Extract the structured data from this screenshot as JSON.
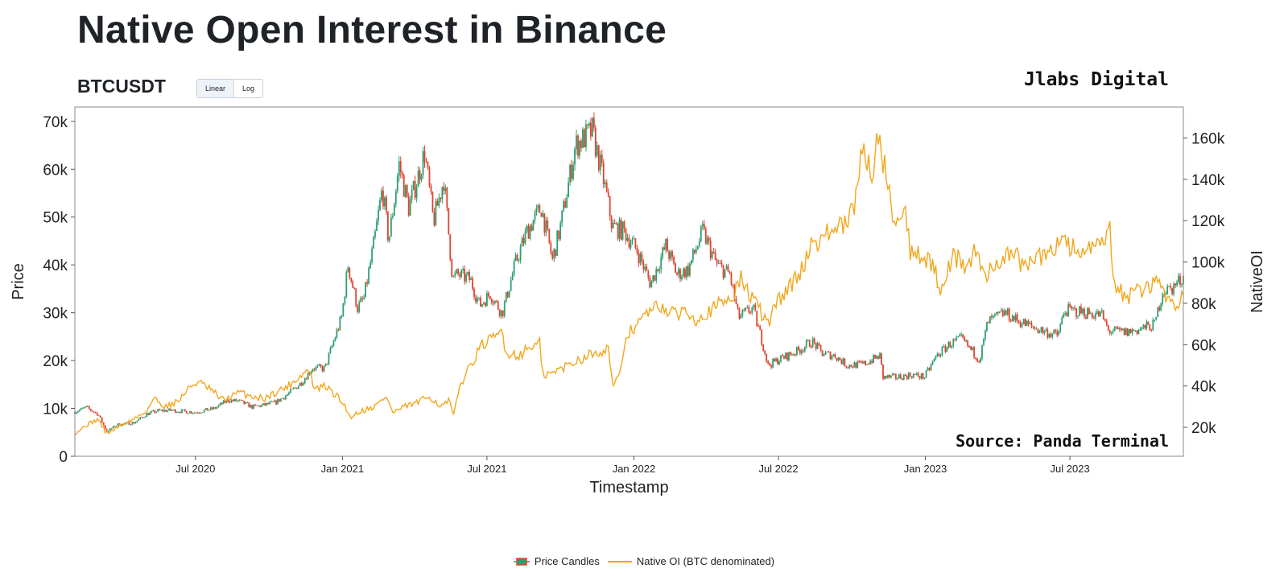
{
  "page": {
    "title": "Native Open Interest in Binance",
    "symbol": "BTCUSDT",
    "scale_buttons": [
      "Linear",
      "Log"
    ],
    "brand": "Jlabs Digital",
    "source": "Source: Panda Terminal"
  },
  "colors": {
    "up_candle": "#2e9e6e",
    "down_candle": "#e0432f",
    "native_oi": "#f2a61c",
    "axis": "#555555",
    "frame": "#888888"
  },
  "chart_data": {
    "type": "line",
    "title": "Native Open Interest in Binance",
    "xlabel": "Timestamp",
    "ylabel": "Price",
    "y2label": "NativeOI",
    "xlim": [
      "2020-02-01",
      "2023-11-20"
    ],
    "ylim": [
      0,
      73000
    ],
    "y2lim": [
      6000,
      175000
    ],
    "x_ticks": [
      {
        "date": "2020-07-01",
        "label": "Jul 2020"
      },
      {
        "date": "2021-01-01",
        "label": "Jan 2021"
      },
      {
        "date": "2021-07-01",
        "label": "Jul 2021"
      },
      {
        "date": "2022-01-01",
        "label": "Jan 2022"
      },
      {
        "date": "2022-07-01",
        "label": "Jul 2022"
      },
      {
        "date": "2023-01-01",
        "label": "Jan 2023"
      },
      {
        "date": "2023-07-01",
        "label": "Jul 2023"
      }
    ],
    "y_ticks": [
      {
        "value": 0,
        "label": "0"
      },
      {
        "value": 10000,
        "label": "10k"
      },
      {
        "value": 20000,
        "label": "20k"
      },
      {
        "value": 30000,
        "label": "30k"
      },
      {
        "value": 40000,
        "label": "40k"
      },
      {
        "value": 50000,
        "label": "50k"
      },
      {
        "value": 60000,
        "label": "60k"
      },
      {
        "value": 70000,
        "label": "70k"
      }
    ],
    "y2_ticks": [
      {
        "value": 20000,
        "label": "20k"
      },
      {
        "value": 40000,
        "label": "40k"
      },
      {
        "value": 60000,
        "label": "60k"
      },
      {
        "value": 80000,
        "label": "80k"
      },
      {
        "value": 100000,
        "label": "100k"
      },
      {
        "value": 120000,
        "label": "120k"
      },
      {
        "value": 140000,
        "label": "140k"
      },
      {
        "value": 160000,
        "label": "160k"
      }
    ],
    "legend_position": "bottom-center",
    "grid": false,
    "series": [
      {
        "name": "Price Candles",
        "type": "candlestick",
        "axis": "left",
        "points": [
          [
            "2020-02-01",
            9300
          ],
          [
            "2020-02-15",
            10200
          ],
          [
            "2020-03-01",
            8800
          ],
          [
            "2020-03-12",
            5200
          ],
          [
            "2020-03-25",
            6600
          ],
          [
            "2020-04-15",
            7000
          ],
          [
            "2020-05-01",
            8800
          ],
          [
            "2020-05-15",
            9500
          ],
          [
            "2020-06-01",
            9600
          ],
          [
            "2020-06-15",
            9400
          ],
          [
            "2020-07-01",
            9200
          ],
          [
            "2020-07-25",
            10000
          ],
          [
            "2020-08-10",
            11700
          ],
          [
            "2020-08-25",
            11500
          ],
          [
            "2020-09-10",
            10300
          ],
          [
            "2020-09-25",
            10700
          ],
          [
            "2020-10-10",
            11300
          ],
          [
            "2020-10-25",
            13000
          ],
          [
            "2020-11-10",
            15300
          ],
          [
            "2020-11-25",
            18500
          ],
          [
            "2020-12-10",
            18300
          ],
          [
            "2020-12-20",
            23500
          ],
          [
            "2020-12-31",
            29000
          ],
          [
            "2021-01-08",
            40000
          ],
          [
            "2021-01-20",
            31000
          ],
          [
            "2021-01-28",
            33000
          ],
          [
            "2021-02-10",
            45000
          ],
          [
            "2021-02-20",
            56000
          ],
          [
            "2021-02-28",
            45000
          ],
          [
            "2021-03-13",
            61000
          ],
          [
            "2021-03-25",
            52000
          ],
          [
            "2021-04-05",
            58000
          ],
          [
            "2021-04-14",
            63500
          ],
          [
            "2021-04-25",
            49000
          ],
          [
            "2021-05-08",
            58000
          ],
          [
            "2021-05-19",
            37000
          ],
          [
            "2021-05-25",
            38000
          ],
          [
            "2021-06-10",
            37000
          ],
          [
            "2021-06-22",
            31500
          ],
          [
            "2021-07-05",
            34000
          ],
          [
            "2021-07-20",
            29800
          ],
          [
            "2021-08-05",
            40000
          ],
          [
            "2021-08-20",
            47000
          ],
          [
            "2021-09-07",
            52000
          ],
          [
            "2021-09-21",
            41000
          ],
          [
            "2021-10-01",
            48000
          ],
          [
            "2021-10-20",
            65000
          ],
          [
            "2021-11-10",
            68000
          ],
          [
            "2021-11-25",
            57000
          ],
          [
            "2021-12-05",
            48000
          ],
          [
            "2021-12-20",
            47000
          ],
          [
            "2022-01-05",
            43000
          ],
          [
            "2022-01-22",
            36000
          ],
          [
            "2022-02-10",
            44000
          ],
          [
            "2022-02-24",
            38000
          ],
          [
            "2022-03-10",
            39000
          ],
          [
            "2022-03-28",
            47000
          ],
          [
            "2022-04-15",
            40000
          ],
          [
            "2022-05-01",
            38000
          ],
          [
            "2022-05-12",
            29000
          ],
          [
            "2022-05-30",
            31000
          ],
          [
            "2022-06-13",
            22500
          ],
          [
            "2022-06-18",
            19000
          ],
          [
            "2022-07-05",
            20500
          ],
          [
            "2022-07-25",
            22000
          ],
          [
            "2022-08-12",
            24000
          ],
          [
            "2022-08-25",
            21500
          ],
          [
            "2022-09-10",
            21000
          ],
          [
            "2022-09-25",
            19000
          ],
          [
            "2022-10-15",
            19200
          ],
          [
            "2022-11-05",
            21000
          ],
          [
            "2022-11-09",
            16500
          ],
          [
            "2022-11-25",
            16500
          ],
          [
            "2022-12-15",
            17000
          ],
          [
            "2022-12-31",
            16600
          ],
          [
            "2023-01-15",
            21000
          ],
          [
            "2023-02-01",
            23500
          ],
          [
            "2023-02-15",
            24500
          ],
          [
            "2023-03-10",
            20200
          ],
          [
            "2023-03-20",
            28000
          ],
          [
            "2023-04-10",
            30000
          ],
          [
            "2023-04-25",
            28500
          ],
          [
            "2023-05-15",
            27000
          ],
          [
            "2023-06-15",
            25200
          ],
          [
            "2023-06-25",
            30500
          ],
          [
            "2023-07-15",
            30200
          ],
          [
            "2023-08-10",
            29500
          ],
          [
            "2023-08-18",
            26200
          ],
          [
            "2023-09-10",
            25900
          ],
          [
            "2023-09-25",
            26500
          ],
          [
            "2023-10-15",
            27500
          ],
          [
            "2023-10-25",
            34500
          ],
          [
            "2023-11-05",
            35000
          ],
          [
            "2023-11-20",
            37500
          ]
        ]
      },
      {
        "name": "Native OI (BTC denominated)",
        "type": "line",
        "axis": "right",
        "points": [
          [
            "2020-02-01",
            17000
          ],
          [
            "2020-02-15",
            21000
          ],
          [
            "2020-03-01",
            24000
          ],
          [
            "2020-03-12",
            17000
          ],
          [
            "2020-03-25",
            20000
          ],
          [
            "2020-04-15",
            24000
          ],
          [
            "2020-05-01",
            28000
          ],
          [
            "2020-05-10",
            34000
          ],
          [
            "2020-05-25",
            30000
          ],
          [
            "2020-06-10",
            33000
          ],
          [
            "2020-06-25",
            40000
          ],
          [
            "2020-07-05",
            42000
          ],
          [
            "2020-07-20",
            38000
          ],
          [
            "2020-08-05",
            33000
          ],
          [
            "2020-08-25",
            37000
          ],
          [
            "2020-09-10",
            35000
          ],
          [
            "2020-09-25",
            34000
          ],
          [
            "2020-10-10",
            37000
          ],
          [
            "2020-10-25",
            40000
          ],
          [
            "2020-11-10",
            45000
          ],
          [
            "2020-11-20",
            48000
          ],
          [
            "2020-11-28",
            38000
          ],
          [
            "2020-12-10",
            40000
          ],
          [
            "2020-12-25",
            35000
          ],
          [
            "2021-01-05",
            30000
          ],
          [
            "2021-01-10",
            25000
          ],
          [
            "2021-01-25",
            28000
          ],
          [
            "2021-02-10",
            30000
          ],
          [
            "2021-02-25",
            35000
          ],
          [
            "2021-03-05",
            27000
          ],
          [
            "2021-03-20",
            30000
          ],
          [
            "2021-04-05",
            32000
          ],
          [
            "2021-04-20",
            35000
          ],
          [
            "2021-05-05",
            30000
          ],
          [
            "2021-05-15",
            33000
          ],
          [
            "2021-05-20",
            25000
          ],
          [
            "2021-05-28",
            40000
          ],
          [
            "2021-06-10",
            50000
          ],
          [
            "2021-06-25",
            60000
          ],
          [
            "2021-07-10",
            63000
          ],
          [
            "2021-07-20",
            67000
          ],
          [
            "2021-07-25",
            56000
          ],
          [
            "2021-08-10",
            55000
          ],
          [
            "2021-08-25",
            59000
          ],
          [
            "2021-09-05",
            61000
          ],
          [
            "2021-09-08",
            45000
          ],
          [
            "2021-09-20",
            46000
          ],
          [
            "2021-10-05",
            49000
          ],
          [
            "2021-10-20",
            52000
          ],
          [
            "2021-11-05",
            55000
          ],
          [
            "2021-11-20",
            57000
          ],
          [
            "2021-12-01",
            58000
          ],
          [
            "2021-12-05",
            40000
          ],
          [
            "2021-12-15",
            45000
          ],
          [
            "2021-12-22",
            64000
          ],
          [
            "2022-01-05",
            70000
          ],
          [
            "2022-01-20",
            76000
          ],
          [
            "2022-02-05",
            79000
          ],
          [
            "2022-02-20",
            74000
          ],
          [
            "2022-03-05",
            77000
          ],
          [
            "2022-03-20",
            73000
          ],
          [
            "2022-04-05",
            76000
          ],
          [
            "2022-04-20",
            80000
          ],
          [
            "2022-05-05",
            84000
          ],
          [
            "2022-05-15",
            92000
          ],
          [
            "2022-05-25",
            85000
          ],
          [
            "2022-06-10",
            75000
          ],
          [
            "2022-06-18",
            70000
          ],
          [
            "2022-06-28",
            80000
          ],
          [
            "2022-07-15",
            88000
          ],
          [
            "2022-07-30",
            96000
          ],
          [
            "2022-08-10",
            108000
          ],
          [
            "2022-08-25",
            112000
          ],
          [
            "2022-09-10",
            116000
          ],
          [
            "2022-09-25",
            118000
          ],
          [
            "2022-10-05",
            128000
          ],
          [
            "2022-10-15",
            160000
          ],
          [
            "2022-10-25",
            140000
          ],
          [
            "2022-11-05",
            165000
          ],
          [
            "2022-11-09",
            150000
          ],
          [
            "2022-11-15",
            135000
          ],
          [
            "2022-11-25",
            120000
          ],
          [
            "2022-12-08",
            125000
          ],
          [
            "2022-12-12",
            106000
          ],
          [
            "2022-12-25",
            104000
          ],
          [
            "2023-01-10",
            98000
          ],
          [
            "2023-01-20",
            88000
          ],
          [
            "2023-02-05",
            103000
          ],
          [
            "2023-02-20",
            98000
          ],
          [
            "2023-03-05",
            105000
          ],
          [
            "2023-03-15",
            93000
          ],
          [
            "2023-04-01",
            100000
          ],
          [
            "2023-04-20",
            105000
          ],
          [
            "2023-05-05",
            97000
          ],
          [
            "2023-05-20",
            102000
          ],
          [
            "2023-06-05",
            103000
          ],
          [
            "2023-06-20",
            113000
          ],
          [
            "2023-07-05",
            106000
          ],
          [
            "2023-07-25",
            105000
          ],
          [
            "2023-08-10",
            108000
          ],
          [
            "2023-08-20",
            115000
          ],
          [
            "2023-08-25",
            88000
          ],
          [
            "2023-09-10",
            83000
          ],
          [
            "2023-09-25",
            86000
          ],
          [
            "2023-10-10",
            88000
          ],
          [
            "2023-10-20",
            94000
          ],
          [
            "2023-10-28",
            82000
          ],
          [
            "2023-11-10",
            80000
          ],
          [
            "2023-11-20",
            84000
          ]
        ]
      }
    ]
  }
}
